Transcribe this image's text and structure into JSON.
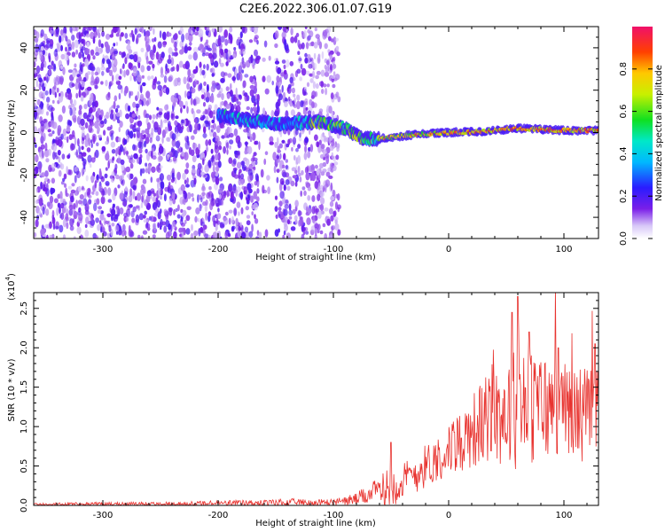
{
  "title": "C2E6.2022.306.01.07.G19",
  "colorbar": {
    "label": "Normalized spectral amplitude",
    "ticks": [
      "0.0",
      "0.2",
      "0.4",
      "0.6",
      "0.8"
    ],
    "tick_values": [
      0.0,
      0.2,
      0.4,
      0.6,
      0.8
    ],
    "range": [
      0,
      1
    ]
  },
  "chart_data": [
    {
      "type": "heatmap",
      "panel": "top",
      "title": "C2E6.2022.306.01.07.G19",
      "xlabel": "Height of straight line (km)",
      "ylabel": "Frequency (Hz)",
      "xlim": [
        -360,
        130
      ],
      "ylim": [
        -50,
        50
      ],
      "xticks": [
        -300,
        -200,
        -100,
        0,
        100
      ],
      "yticks": [
        -40,
        -20,
        0,
        20,
        40
      ],
      "xtick_labels": [
        "-300",
        "-200",
        "-100",
        "0",
        "100"
      ],
      "ytick_labels": [
        "-40",
        "-20",
        "0",
        "20",
        "40"
      ],
      "description_points": [
        {
          "x": -360,
          "noise_band": [
            -50,
            50
          ],
          "amplitude": 0.15
        },
        {
          "x": -180,
          "center_hz": 8,
          "amplitude": 0.25
        },
        {
          "x": -150,
          "center_hz": 4,
          "amplitude": 0.4
        },
        {
          "x": -100,
          "center_hz": 5,
          "amplitude": 0.45
        },
        {
          "x": -80,
          "center_hz": -2,
          "amplitude": 0.5
        },
        {
          "x": -60,
          "center_hz": -3,
          "amplitude": 0.6
        },
        {
          "x": -20,
          "center_hz": -1,
          "amplitude": 0.75
        },
        {
          "x": 20,
          "center_hz": 0,
          "amplitude": 0.85
        },
        {
          "x": 60,
          "center_hz": 2,
          "amplitude": 0.85
        },
        {
          "x": 100,
          "center_hz": 1,
          "amplitude": 0.8
        },
        {
          "x": 130,
          "center_hz": 1,
          "amplitude": 0.8
        }
      ]
    },
    {
      "type": "line",
      "panel": "bottom",
      "xlabel": "Height of straight line (km)",
      "ylabel": "SNR (10 * v/v)",
      "yscale_label": "(x10",
      "yscale_exp": "4",
      "yscale_close": ")",
      "xlim": [
        -360,
        130
      ],
      "ylim": [
        0,
        2.7
      ],
      "xticks": [
        -300,
        -200,
        -100,
        0,
        100
      ],
      "yticks": [
        0.0,
        0.5,
        1.0,
        1.5,
        2.0,
        2.5
      ],
      "xtick_labels": [
        "-300",
        "-200",
        "-100",
        "0",
        "100"
      ],
      "ytick_labels": [
        "0.0",
        "0.5",
        "1.0",
        "1.5",
        "2.0",
        "2.5"
      ],
      "color": "#e8332f",
      "envelope": [
        {
          "x": -360,
          "base": 0.01,
          "spread": 0.03
        },
        {
          "x": -250,
          "base": 0.02,
          "spread": 0.03
        },
        {
          "x": -175,
          "base": 0.03,
          "spread": 0.05
        },
        {
          "x": -130,
          "base": 0.04,
          "spread": 0.06
        },
        {
          "x": -100,
          "base": 0.04,
          "spread": 0.05
        },
        {
          "x": -80,
          "base": 0.08,
          "spread": 0.1
        },
        {
          "x": -60,
          "base": 0.2,
          "spread": 0.2
        },
        {
          "x": -50,
          "base": 0.25,
          "spread": 0.35
        },
        {
          "x": -40,
          "base": 0.3,
          "spread": 0.3
        },
        {
          "x": -20,
          "base": 0.5,
          "spread": 0.35
        },
        {
          "x": 0,
          "base": 0.7,
          "spread": 0.4
        },
        {
          "x": 20,
          "base": 0.95,
          "spread": 0.6
        },
        {
          "x": 40,
          "base": 1.15,
          "spread": 0.8
        },
        {
          "x": 60,
          "base": 1.25,
          "spread": 1.0
        },
        {
          "x": 80,
          "base": 1.25,
          "spread": 0.9
        },
        {
          "x": 100,
          "base": 1.2,
          "spread": 0.8
        },
        {
          "x": 130,
          "base": 1.15,
          "spread": 0.75
        }
      ],
      "peaks": [
        {
          "x": -50,
          "y": 0.8
        },
        {
          "x": 60,
          "y": 2.65
        },
        {
          "x": 55,
          "y": 2.45
        },
        {
          "x": 70,
          "y": 2.2
        },
        {
          "x": 95,
          "y": 2.0
        },
        {
          "x": 127,
          "y": 2.05
        }
      ]
    }
  ]
}
